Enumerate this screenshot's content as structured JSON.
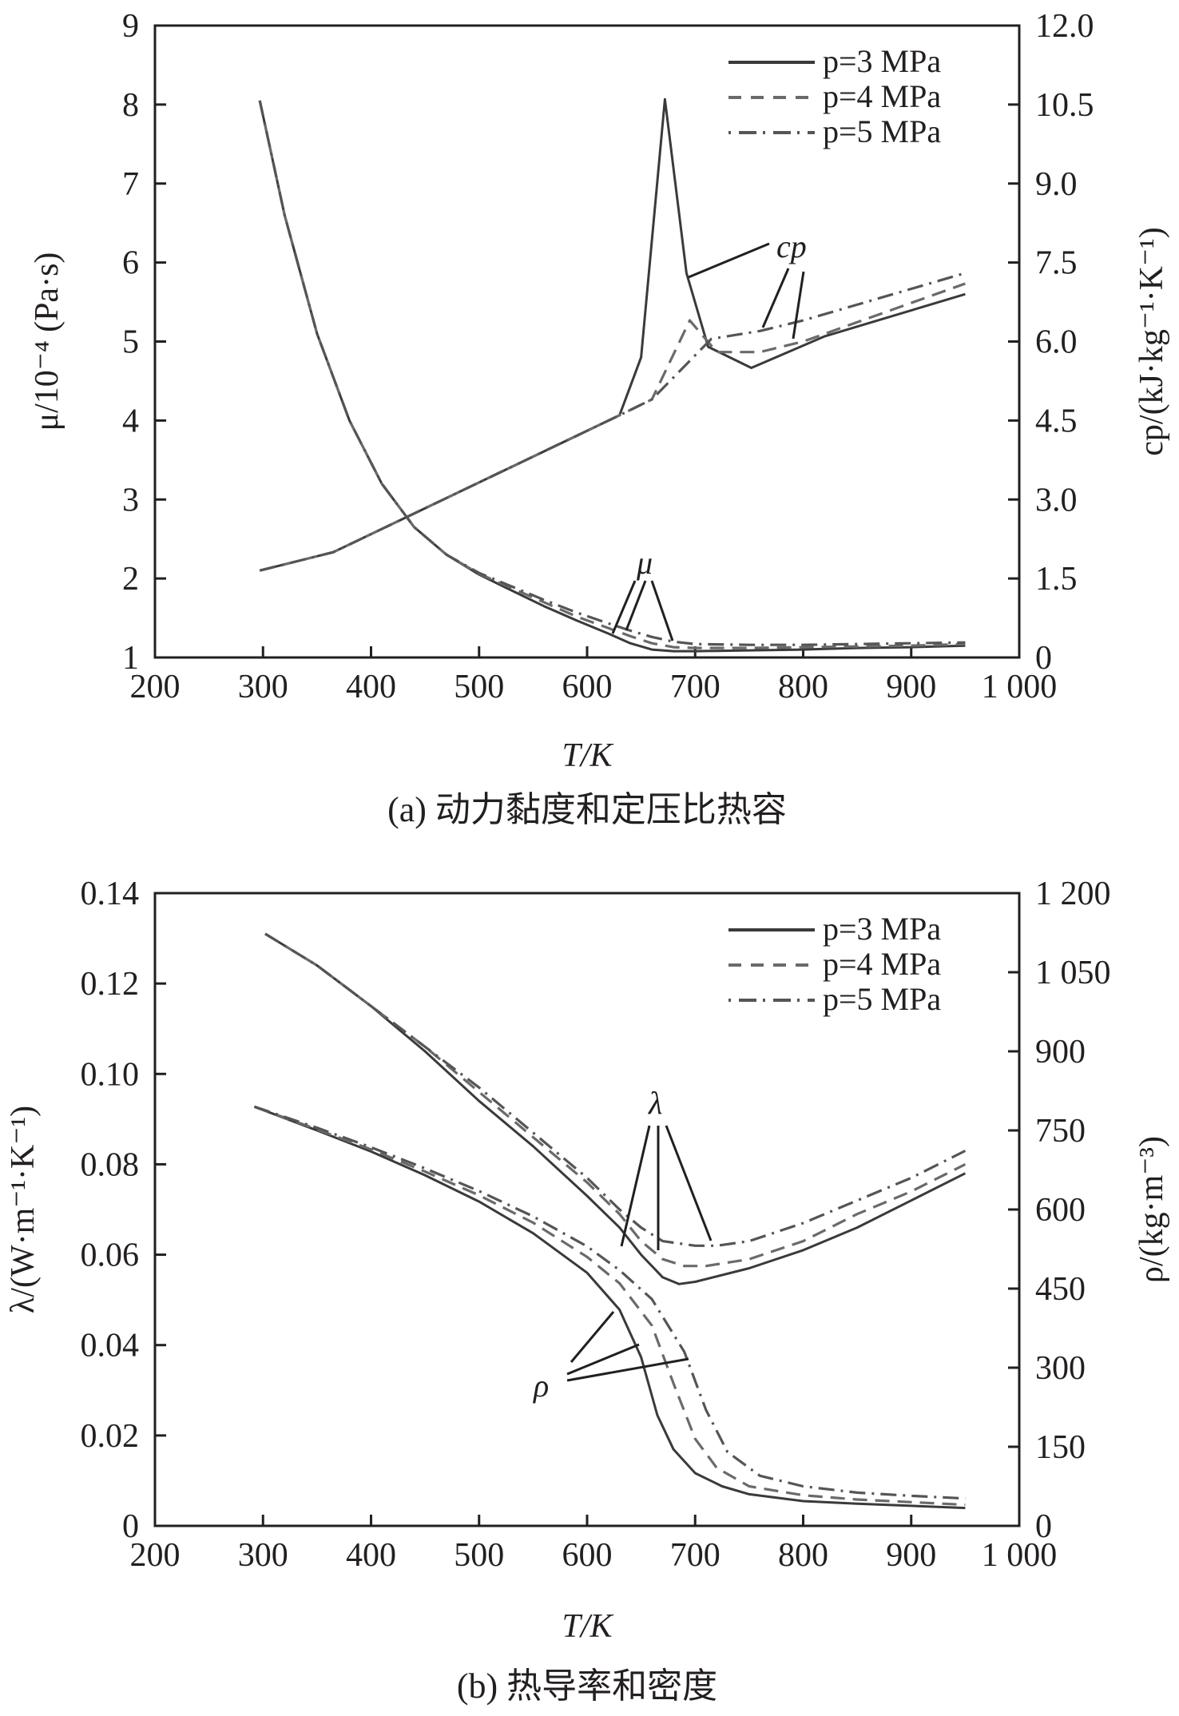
{
  "figure": {
    "panels": [
      "a",
      "b"
    ]
  },
  "chart_data": [
    {
      "type": "line",
      "panel": "a",
      "caption": "(a) 动力黏度和定压比热容",
      "xlabel": "T/K",
      "xlim": [
        200,
        1000
      ],
      "x_ticks": [
        "200",
        "300",
        "400",
        "500",
        "600",
        "700",
        "800",
        "900",
        "1 000"
      ],
      "y_left": {
        "label": "μ/10⁻⁴ (Pa·s)",
        "lim": [
          1,
          9
        ],
        "ticks": [
          "1",
          "2",
          "3",
          "4",
          "5",
          "6",
          "7",
          "8",
          "9"
        ]
      },
      "y_right": {
        "label": "cp/(kJ·kg⁻¹·K⁻¹)",
        "lim": [
          0,
          12
        ],
        "ticks": [
          "0",
          "1.5",
          "3.0",
          "4.5",
          "6.0",
          "7.5",
          "9.0",
          "10.5",
          "12.0"
        ]
      },
      "legend": {
        "position": "top-right",
        "entries": [
          {
            "label": "p=3 MPa",
            "style": "solid"
          },
          {
            "label": "p=4 MPa",
            "style": "dashed"
          },
          {
            "label": "p=5 MPa",
            "style": "dashdot"
          }
        ]
      },
      "annotations": [
        "cp",
        "μ"
      ],
      "series": [
        {
          "name": "μ p=3 MPa",
          "axis": "left",
          "style": "solid",
          "x": [
            297,
            320,
            350,
            380,
            410,
            440,
            470,
            500,
            530,
            560,
            590,
            620,
            640,
            660,
            680,
            700,
            750,
            800,
            850,
            900,
            950
          ],
          "y": [
            8.05,
            6.6,
            5.1,
            4.0,
            3.2,
            2.65,
            2.3,
            2.05,
            1.85,
            1.65,
            1.47,
            1.3,
            1.18,
            1.1,
            1.08,
            1.08,
            1.09,
            1.1,
            1.12,
            1.13,
            1.15
          ]
        },
        {
          "name": "μ p=4 MPa",
          "axis": "left",
          "style": "dashed",
          "x": [
            297,
            320,
            350,
            380,
            410,
            440,
            470,
            500,
            530,
            560,
            590,
            620,
            640,
            660,
            680,
            700,
            750,
            800,
            850,
            900,
            950
          ],
          "y": [
            8.05,
            6.6,
            5.1,
            4.0,
            3.2,
            2.65,
            2.3,
            2.06,
            1.88,
            1.7,
            1.52,
            1.37,
            1.27,
            1.18,
            1.13,
            1.12,
            1.12,
            1.13,
            1.14,
            1.15,
            1.17
          ]
        },
        {
          "name": "μ p=5 MPa",
          "axis": "left",
          "style": "dashdot",
          "x": [
            297,
            320,
            350,
            380,
            410,
            440,
            470,
            500,
            530,
            560,
            590,
            620,
            640,
            660,
            680,
            700,
            750,
            800,
            850,
            900,
            950
          ],
          "y": [
            8.05,
            6.6,
            5.1,
            4.0,
            3.2,
            2.65,
            2.3,
            2.07,
            1.9,
            1.73,
            1.57,
            1.43,
            1.34,
            1.26,
            1.2,
            1.17,
            1.16,
            1.16,
            1.17,
            1.18,
            1.19
          ]
        },
        {
          "name": "cp p=3 MPa",
          "axis": "right",
          "style": "solid",
          "x": [
            297,
            365,
            630,
            650,
            672,
            692,
            712,
            752,
            820,
            950
          ],
          "y": [
            1.65,
            2.0,
            4.6,
            5.7,
            10.6,
            7.3,
            5.9,
            5.5,
            6.1,
            6.9
          ]
        },
        {
          "name": "cp p=4 MPa",
          "axis": "right",
          "style": "dashed",
          "x": [
            297,
            365,
            630,
            660,
            695,
            720,
            760,
            800,
            950
          ],
          "y": [
            1.65,
            2.0,
            4.6,
            4.9,
            6.4,
            5.8,
            5.8,
            6.0,
            7.1
          ]
        },
        {
          "name": "cp p=5 MPa",
          "axis": "right",
          "style": "dashdot",
          "x": [
            297,
            365,
            630,
            660,
            715,
            760,
            800,
            950
          ],
          "y": [
            1.65,
            2.0,
            4.6,
            4.9,
            6.05,
            6.2,
            6.4,
            7.3
          ]
        }
      ]
    },
    {
      "type": "line",
      "panel": "b",
      "caption": "(b) 热导率和密度",
      "xlabel": "T/K",
      "xlim": [
        200,
        1000
      ],
      "x_ticks": [
        "200",
        "300",
        "400",
        "500",
        "600",
        "700",
        "800",
        "900",
        "1 000"
      ],
      "y_left": {
        "label": "λ/(W·m⁻¹·K⁻¹)",
        "lim": [
          0,
          0.14
        ],
        "ticks": [
          "0",
          "0.02",
          "0.04",
          "0.06",
          "0.08",
          "0.10",
          "0.12",
          "0.14"
        ]
      },
      "y_right": {
        "label": "ρ/(kg·m⁻³)",
        "lim": [
          0,
          1200
        ],
        "ticks": [
          "0",
          "150",
          "300",
          "450",
          "600",
          "750",
          "900",
          "1 050",
          "1 200"
        ]
      },
      "legend": {
        "position": "top-right",
        "entries": [
          {
            "label": "p=3 MPa",
            "style": "solid"
          },
          {
            "label": "p=4 MPa",
            "style": "dashed"
          },
          {
            "label": "p=5 MPa",
            "style": "dashdot"
          }
        ]
      },
      "annotations": [
        "λ",
        "ρ"
      ],
      "series": [
        {
          "name": "λ p=3 MPa",
          "axis": "left",
          "style": "solid",
          "x": [
            302,
            350,
            400,
            450,
            500,
            550,
            600,
            630,
            650,
            670,
            685,
            700,
            750,
            800,
            850,
            900,
            950
          ],
          "y": [
            0.131,
            0.124,
            0.115,
            0.105,
            0.094,
            0.084,
            0.073,
            0.066,
            0.06,
            0.055,
            0.0535,
            0.054,
            0.057,
            0.061,
            0.066,
            0.072,
            0.078
          ]
        },
        {
          "name": "λ p=4 MPa",
          "axis": "left",
          "style": "dashed",
          "x": [
            302,
            350,
            400,
            450,
            500,
            550,
            600,
            630,
            650,
            670,
            690,
            710,
            750,
            800,
            850,
            900,
            950
          ],
          "y": [
            0.131,
            0.124,
            0.115,
            0.106,
            0.096,
            0.086,
            0.076,
            0.069,
            0.063,
            0.059,
            0.0575,
            0.0575,
            0.059,
            0.063,
            0.069,
            0.074,
            0.08
          ]
        },
        {
          "name": "λ p=5 MPa",
          "axis": "left",
          "style": "dashdot",
          "x": [
            302,
            350,
            400,
            450,
            500,
            550,
            600,
            630,
            650,
            670,
            700,
            720,
            750,
            800,
            850,
            900,
            950
          ],
          "y": [
            0.131,
            0.124,
            0.115,
            0.106,
            0.097,
            0.087,
            0.077,
            0.07,
            0.066,
            0.063,
            0.062,
            0.062,
            0.063,
            0.067,
            0.072,
            0.077,
            0.083
          ]
        },
        {
          "name": "ρ p=3 MPa",
          "axis": "right",
          "style": "solid",
          "x": [
            292,
            350,
            400,
            450,
            500,
            550,
            600,
            630,
            650,
            665,
            680,
            700,
            725,
            750,
            800,
            850,
            900,
            950
          ],
          "y": [
            795,
            750,
            710,
            665,
            615,
            555,
            480,
            410,
            320,
            210,
            145,
            100,
            75,
            60,
            47,
            42,
            38,
            34
          ]
        },
        {
          "name": "ρ p=4 MPa",
          "axis": "right",
          "style": "dashed",
          "x": [
            292,
            350,
            400,
            450,
            500,
            550,
            600,
            630,
            660,
            680,
            700,
            720,
            750,
            800,
            850,
            900,
            950
          ],
          "y": [
            795,
            752,
            714,
            672,
            627,
            575,
            510,
            460,
            380,
            270,
            165,
            110,
            75,
            58,
            50,
            45,
            40
          ]
        },
        {
          "name": "ρ p=5 MPa",
          "axis": "right",
          "style": "dashdot",
          "x": [
            292,
            350,
            400,
            450,
            500,
            550,
            600,
            630,
            660,
            690,
            710,
            730,
            760,
            800,
            850,
            900,
            950
          ],
          "y": [
            795,
            755,
            718,
            678,
            635,
            587,
            530,
            485,
            430,
            330,
            220,
            140,
            95,
            75,
            63,
            57,
            52
          ]
        }
      ]
    }
  ]
}
